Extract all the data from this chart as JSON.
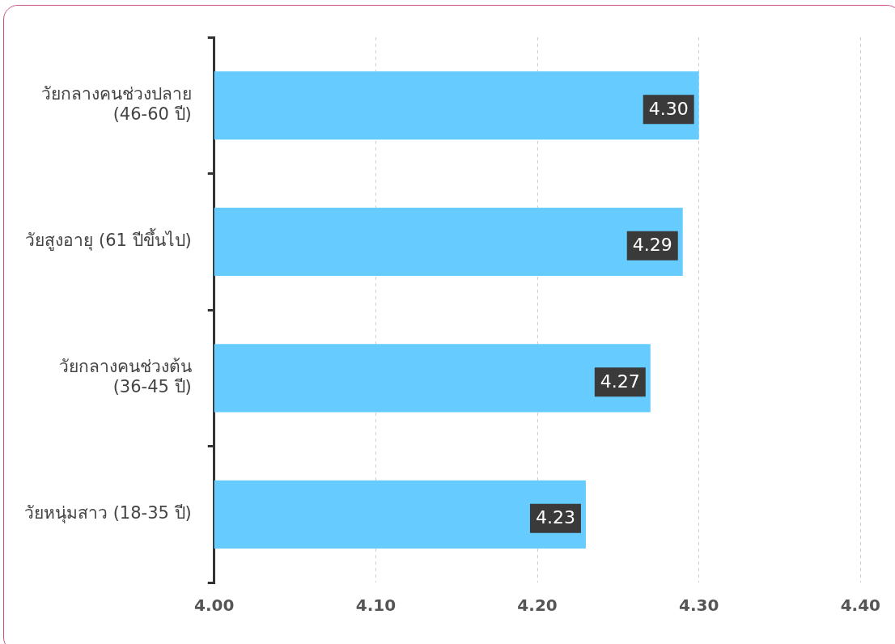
{
  "chart_data": {
    "type": "bar",
    "orientation": "horizontal",
    "categories": [
      "วัยกลางคนช่วงปลาย\n(46-60 ปี)",
      "วัยสูงอายุ (61 ปีขึ้นไป)",
      "วัยกลางคนช่วงต้น\n(36-45 ปี)",
      "วัยหนุ่มสาว (18-35 ปี)"
    ],
    "values": [
      4.3,
      4.29,
      4.27,
      4.23
    ],
    "value_labels": [
      "4.30",
      "4.29",
      "4.27",
      "4.23"
    ],
    "color": "#66ccff",
    "xlim": [
      4.0,
      4.4
    ],
    "xticks": [
      {
        "value": 4.0,
        "label": "4.00"
      },
      {
        "value": 4.1,
        "label": "4.10"
      },
      {
        "value": 4.2,
        "label": "4.20"
      },
      {
        "value": 4.3,
        "label": "4.30"
      },
      {
        "value": 4.4,
        "label": "4.40"
      }
    ],
    "grid": "x",
    "line_style": "dashed",
    "legend": false
  }
}
